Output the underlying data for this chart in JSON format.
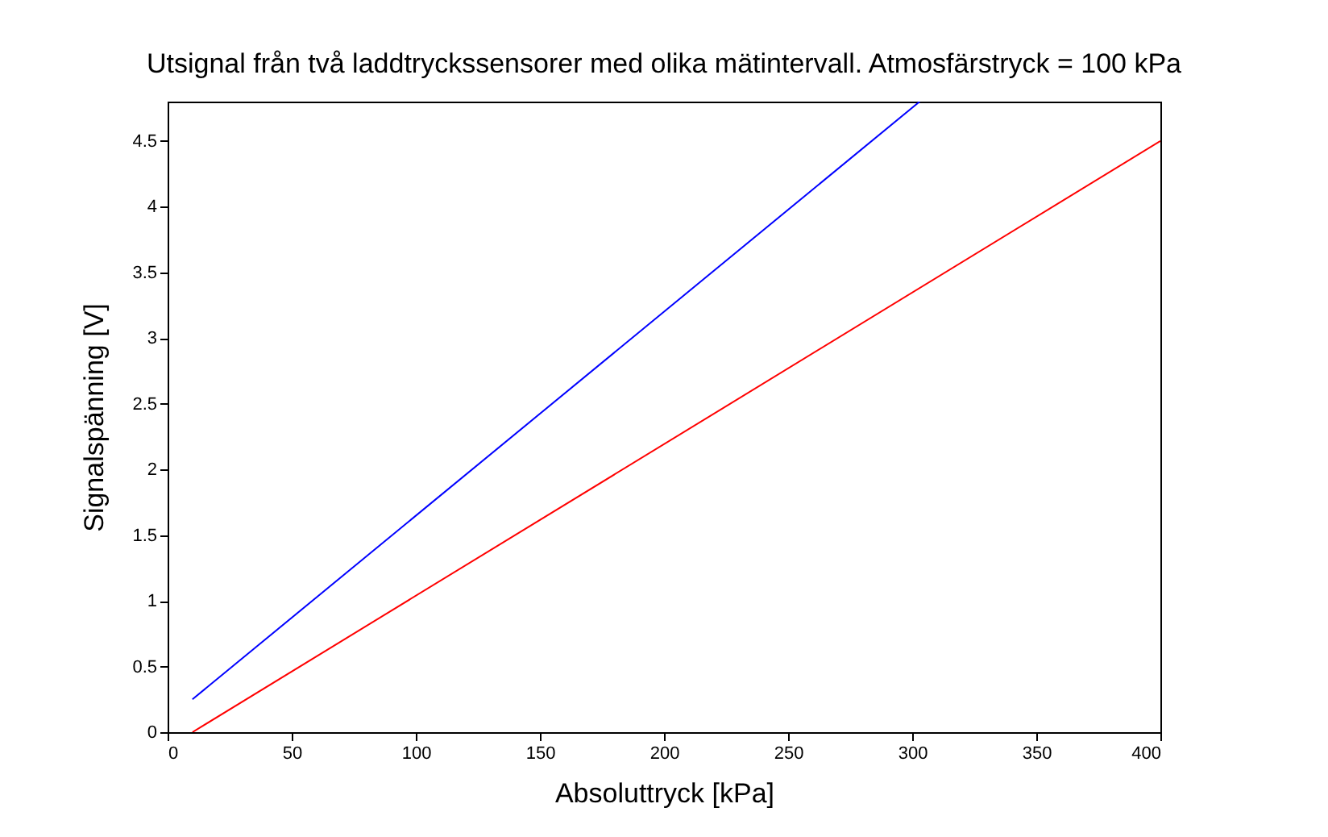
{
  "chart_data": {
    "type": "line",
    "title": "Utsignal från två laddtryckssensorer med olika mätintervall. Atmosfärstryck = 100 kPa",
    "xlabel": "Absoluttryck [kPa]",
    "ylabel": "Signalspänning [V]",
    "series": [
      {
        "color": "#0000ff",
        "x": [
          10,
          303
        ],
        "values": [
          0.25,
          4.8
        ]
      },
      {
        "color": "#ff0000",
        "x": [
          10,
          400
        ],
        "values": [
          0,
          4.5
        ]
      }
    ],
    "xlim": [
      0,
      400
    ],
    "xticks": [
      0,
      50,
      100,
      150,
      200,
      250,
      300,
      350,
      400
    ],
    "ylim": [
      0,
      4.8
    ],
    "yticks": [
      0,
      0.5,
      1,
      1.5,
      2,
      2.5,
      3,
      3.5,
      4,
      4.5
    ],
    "grid": false,
    "legend": false
  }
}
